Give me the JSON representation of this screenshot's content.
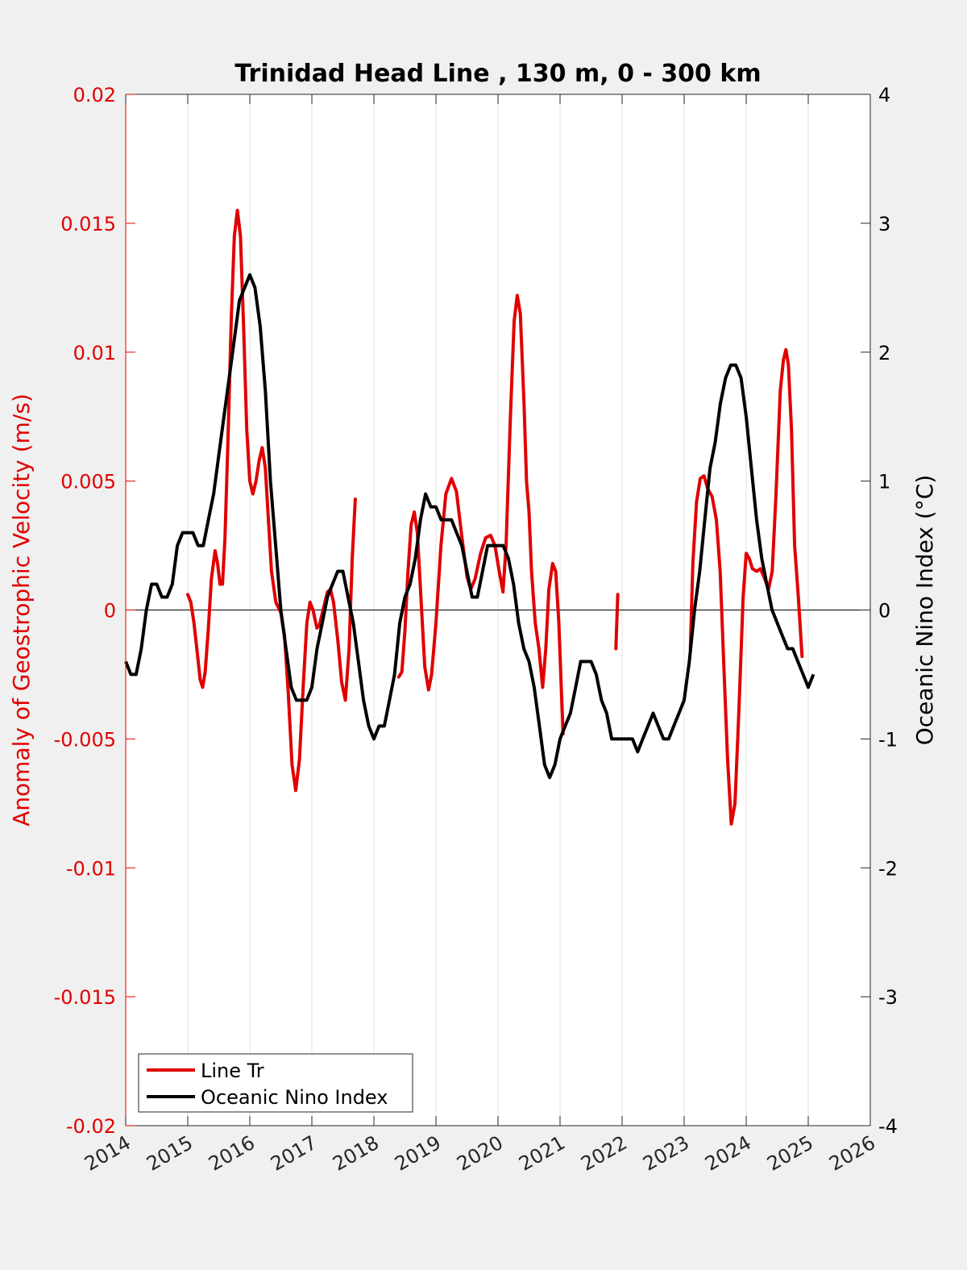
{
  "chart_data": {
    "type": "line",
    "title": "Trinidad Head Line , 130 m, 0 - 300 km",
    "ylabel_left": "Anomaly of Geostrophic Velocity (m/s)",
    "ylabel_right": "Oceanic Nino Index (°C)",
    "xlabel": "",
    "xlim": [
      2014,
      2026
    ],
    "ylim_left": [
      -0.02,
      0.02
    ],
    "ylim_right": [
      -4,
      4
    ],
    "x_ticks": [
      "2014",
      "2015",
      "2016",
      "2017",
      "2018",
      "2019",
      "2020",
      "2021",
      "2022",
      "2023",
      "2024",
      "2025",
      "2026"
    ],
    "y_ticks_left": [
      "-0.02",
      "-0.015",
      "-0.01",
      "-0.005",
      "0",
      "0.005",
      "0.01",
      "0.015",
      "0.02"
    ],
    "y_ticks_right": [
      "-4",
      "-3",
      "-2",
      "-1",
      "0",
      "1",
      "2",
      "3",
      "4"
    ],
    "grid": "vertical",
    "legend_position": "bottom-left",
    "colors": {
      "left_axis": "#e00000",
      "line_tr": "#e00000",
      "oni": "#000000",
      "plot_bg": "#ffffff",
      "figure_bg": "#f0f0f0"
    },
    "series": [
      {
        "name": "Line Tr",
        "axis": "left",
        "segments": [
          [
            [
              2015.0,
              0.0006
            ],
            [
              2015.05,
              0.0003
            ],
            [
              2015.1,
              -0.0005
            ],
            [
              2015.15,
              -0.0016
            ],
            [
              2015.2,
              -0.0027
            ],
            [
              2015.24,
              -0.003
            ],
            [
              2015.28,
              -0.0024
            ],
            [
              2015.33,
              -0.0008
            ],
            [
              2015.38,
              0.0012
            ],
            [
              2015.44,
              0.0023
            ],
            [
              2015.48,
              0.0018
            ],
            [
              2015.52,
              0.001
            ],
            [
              2015.56,
              0.001
            ],
            [
              2015.6,
              0.0028
            ],
            [
              2015.65,
              0.0068
            ],
            [
              2015.7,
              0.0112
            ],
            [
              2015.75,
              0.0145
            ],
            [
              2015.8,
              0.0155
            ],
            [
              2015.85,
              0.0145
            ],
            [
              2015.9,
              0.011
            ],
            [
              2015.95,
              0.007
            ],
            [
              2016.0,
              0.005
            ],
            [
              2016.05,
              0.0045
            ],
            [
              2016.1,
              0.005
            ],
            [
              2016.15,
              0.0058
            ],
            [
              2016.2,
              0.0063
            ],
            [
              2016.25,
              0.0055
            ],
            [
              2016.3,
              0.0035
            ],
            [
              2016.35,
              0.0015
            ],
            [
              2016.42,
              0.0003
            ],
            [
              2016.5,
              -0.0001
            ],
            [
              2016.56,
              -0.001
            ],
            [
              2016.62,
              -0.0032
            ],
            [
              2016.68,
              -0.006
            ],
            [
              2016.74,
              -0.007
            ],
            [
              2016.8,
              -0.0058
            ],
            [
              2016.86,
              -0.003
            ],
            [
              2016.92,
              -0.0005
            ],
            [
              2016.97,
              0.0003
            ],
            [
              2017.02,
              0.0
            ],
            [
              2017.08,
              -0.0007
            ],
            [
              2017.12,
              -0.0006
            ],
            [
              2017.18,
              0.0
            ],
            [
              2017.25,
              0.0007
            ],
            [
              2017.3,
              0.0008
            ],
            [
              2017.35,
              0.0003
            ],
            [
              2017.42,
              -0.0012
            ],
            [
              2017.48,
              -0.0028
            ],
            [
              2017.54,
              -0.0035
            ],
            [
              2017.6,
              -0.0015
            ],
            [
              2017.65,
              0.002
            ],
            [
              2017.7,
              0.0043
            ]
          ],
          [
            [
              2018.4,
              -0.0026
            ],
            [
              2018.45,
              -0.0024
            ],
            [
              2018.5,
              -0.0008
            ],
            [
              2018.55,
              0.0015
            ],
            [
              2018.6,
              0.0033
            ],
            [
              2018.65,
              0.0038
            ],
            [
              2018.7,
              0.003
            ],
            [
              2018.75,
              0.0008
            ],
            [
              2018.82,
              -0.0022
            ],
            [
              2018.88,
              -0.0031
            ],
            [
              2018.93,
              -0.0025
            ],
            [
              2019.0,
              -0.0005
            ],
            [
              2019.08,
              0.0025
            ],
            [
              2019.16,
              0.0045
            ],
            [
              2019.25,
              0.0051
            ],
            [
              2019.33,
              0.0046
            ],
            [
              2019.42,
              0.0028
            ],
            [
              2019.5,
              0.0013
            ],
            [
              2019.56,
              0.0008
            ],
            [
              2019.63,
              0.0012
            ],
            [
              2019.72,
              0.0022
            ],
            [
              2019.8,
              0.0028
            ],
            [
              2019.88,
              0.0029
            ],
            [
              2019.95,
              0.0025
            ],
            [
              2020.02,
              0.0015
            ],
            [
              2020.08,
              0.0007
            ],
            [
              2020.13,
              0.0025
            ],
            [
              2020.2,
              0.0075
            ],
            [
              2020.26,
              0.0112
            ],
            [
              2020.31,
              0.0122
            ],
            [
              2020.36,
              0.0115
            ],
            [
              2020.42,
              0.008
            ],
            [
              2020.46,
              0.005
            ],
            [
              2020.5,
              0.0038
            ],
            [
              2020.54,
              0.0015
            ],
            [
              2020.6,
              -0.0005
            ],
            [
              2020.66,
              -0.0015
            ],
            [
              2020.72,
              -0.003
            ],
            [
              2020.77,
              -0.0015
            ],
            [
              2020.82,
              0.0008
            ],
            [
              2020.88,
              0.0018
            ],
            [
              2020.93,
              0.0015
            ],
            [
              2020.98,
              -0.0005
            ],
            [
              2021.02,
              -0.003
            ],
            [
              2021.05,
              -0.0048
            ]
          ],
          [
            [
              2021.9,
              -0.0015
            ],
            [
              2021.93,
              0.0006
            ]
          ],
          [
            [
              2023.1,
              -0.0015
            ],
            [
              2023.14,
              0.0018
            ],
            [
              2023.2,
              0.0042
            ],
            [
              2023.26,
              0.0051
            ],
            [
              2023.32,
              0.0052
            ],
            [
              2023.38,
              0.0047
            ],
            [
              2023.45,
              0.0044
            ],
            [
              2023.52,
              0.0035
            ],
            [
              2023.58,
              0.0015
            ],
            [
              2023.64,
              -0.0022
            ],
            [
              2023.7,
              -0.0058
            ],
            [
              2023.76,
              -0.0083
            ],
            [
              2023.82,
              -0.0075
            ],
            [
              2023.88,
              -0.004
            ],
            [
              2023.95,
              0.0005
            ],
            [
              2024.0,
              0.0022
            ],
            [
              2024.05,
              0.002
            ],
            [
              2024.1,
              0.0016
            ],
            [
              2024.17,
              0.0015
            ],
            [
              2024.23,
              0.0016
            ],
            [
              2024.3,
              0.0012
            ],
            [
              2024.36,
              0.0008
            ],
            [
              2024.42,
              0.0015
            ],
            [
              2024.48,
              0.0045
            ],
            [
              2024.55,
              0.0085
            ],
            [
              2024.6,
              0.0097
            ],
            [
              2024.64,
              0.0101
            ],
            [
              2024.68,
              0.0095
            ],
            [
              2024.73,
              0.007
            ],
            [
              2024.78,
              0.0025
            ],
            [
              2024.84,
              0.0005
            ],
            [
              2024.9,
              -0.0018
            ]
          ]
        ]
      },
      {
        "name": "Oceanic Nino Index",
        "axis": "right",
        "x": [
          2014.0,
          2014.083,
          2014.167,
          2014.25,
          2014.333,
          2014.417,
          2014.5,
          2014.583,
          2014.667,
          2014.75,
          2014.833,
          2014.917,
          2015.0,
          2015.083,
          2015.167,
          2015.25,
          2015.333,
          2015.417,
          2015.5,
          2015.583,
          2015.667,
          2015.75,
          2015.833,
          2015.917,
          2016.0,
          2016.083,
          2016.167,
          2016.25,
          2016.333,
          2016.417,
          2016.5,
          2016.583,
          2016.667,
          2016.75,
          2016.833,
          2016.917,
          2017.0,
          2017.083,
          2017.167,
          2017.25,
          2017.333,
          2017.417,
          2017.5,
          2017.583,
          2017.667,
          2017.75,
          2017.833,
          2017.917,
          2018.0,
          2018.083,
          2018.167,
          2018.25,
          2018.333,
          2018.417,
          2018.5,
          2018.583,
          2018.667,
          2018.75,
          2018.833,
          2018.917,
          2019.0,
          2019.083,
          2019.167,
          2019.25,
          2019.333,
          2019.417,
          2019.5,
          2019.583,
          2019.667,
          2019.75,
          2019.833,
          2019.917,
          2020.0,
          2020.083,
          2020.167,
          2020.25,
          2020.333,
          2020.417,
          2020.5,
          2020.583,
          2020.667,
          2020.75,
          2020.833,
          2020.917,
          2021.0,
          2021.083,
          2021.167,
          2021.25,
          2021.333,
          2021.417,
          2021.5,
          2021.583,
          2021.667,
          2021.75,
          2021.833,
          2021.917,
          2022.0,
          2022.083,
          2022.167,
          2022.25,
          2022.333,
          2022.417,
          2022.5,
          2022.583,
          2022.667,
          2022.75,
          2022.833,
          2022.917,
          2023.0,
          2023.083,
          2023.167,
          2023.25,
          2023.333,
          2023.417,
          2023.5,
          2023.583,
          2023.667,
          2023.75,
          2023.833,
          2023.917,
          2024.0,
          2024.083,
          2024.167,
          2024.25,
          2024.333,
          2024.417,
          2024.5,
          2024.583,
          2024.667,
          2024.75,
          2024.833,
          2024.917,
          2025.0,
          2025.083
        ],
        "values": [
          -0.4,
          -0.5,
          -0.5,
          -0.3,
          0.0,
          0.2,
          0.2,
          0.1,
          0.1,
          0.2,
          0.5,
          0.6,
          0.6,
          0.6,
          0.5,
          0.5,
          0.7,
          0.9,
          1.2,
          1.5,
          1.8,
          2.1,
          2.4,
          2.5,
          2.6,
          2.5,
          2.2,
          1.7,
          1.0,
          0.5,
          0.0,
          -0.3,
          -0.6,
          -0.7,
          -0.7,
          -0.7,
          -0.6,
          -0.3,
          -0.1,
          0.1,
          0.2,
          0.3,
          0.3,
          0.1,
          -0.1,
          -0.4,
          -0.7,
          -0.9,
          -1.0,
          -0.9,
          -0.9,
          -0.7,
          -0.5,
          -0.1,
          0.1,
          0.2,
          0.4,
          0.7,
          0.9,
          0.8,
          0.8,
          0.7,
          0.7,
          0.7,
          0.6,
          0.5,
          0.3,
          0.1,
          0.1,
          0.3,
          0.5,
          0.5,
          0.5,
          0.5,
          0.4,
          0.2,
          -0.1,
          -0.3,
          -0.4,
          -0.6,
          -0.9,
          -1.2,
          -1.3,
          -1.2,
          -1.0,
          -0.9,
          -0.8,
          -0.6,
          -0.4,
          -0.4,
          -0.4,
          -0.5,
          -0.7,
          -0.8,
          -1.0,
          -1.0,
          -1.0,
          -1.0,
          -1.0,
          -1.1,
          -1.0,
          -0.9,
          -0.8,
          -0.9,
          -1.0,
          -1.0,
          -0.9,
          -0.8,
          -0.7,
          -0.4,
          0.0,
          0.3,
          0.7,
          1.1,
          1.3,
          1.6,
          1.8,
          1.9,
          1.9,
          1.8,
          1.5,
          1.1,
          0.7,
          0.4,
          0.2,
          0.0,
          -0.1,
          -0.2,
          -0.3,
          -0.3,
          -0.4,
          -0.5,
          -0.6,
          -0.5
        ]
      }
    ]
  }
}
